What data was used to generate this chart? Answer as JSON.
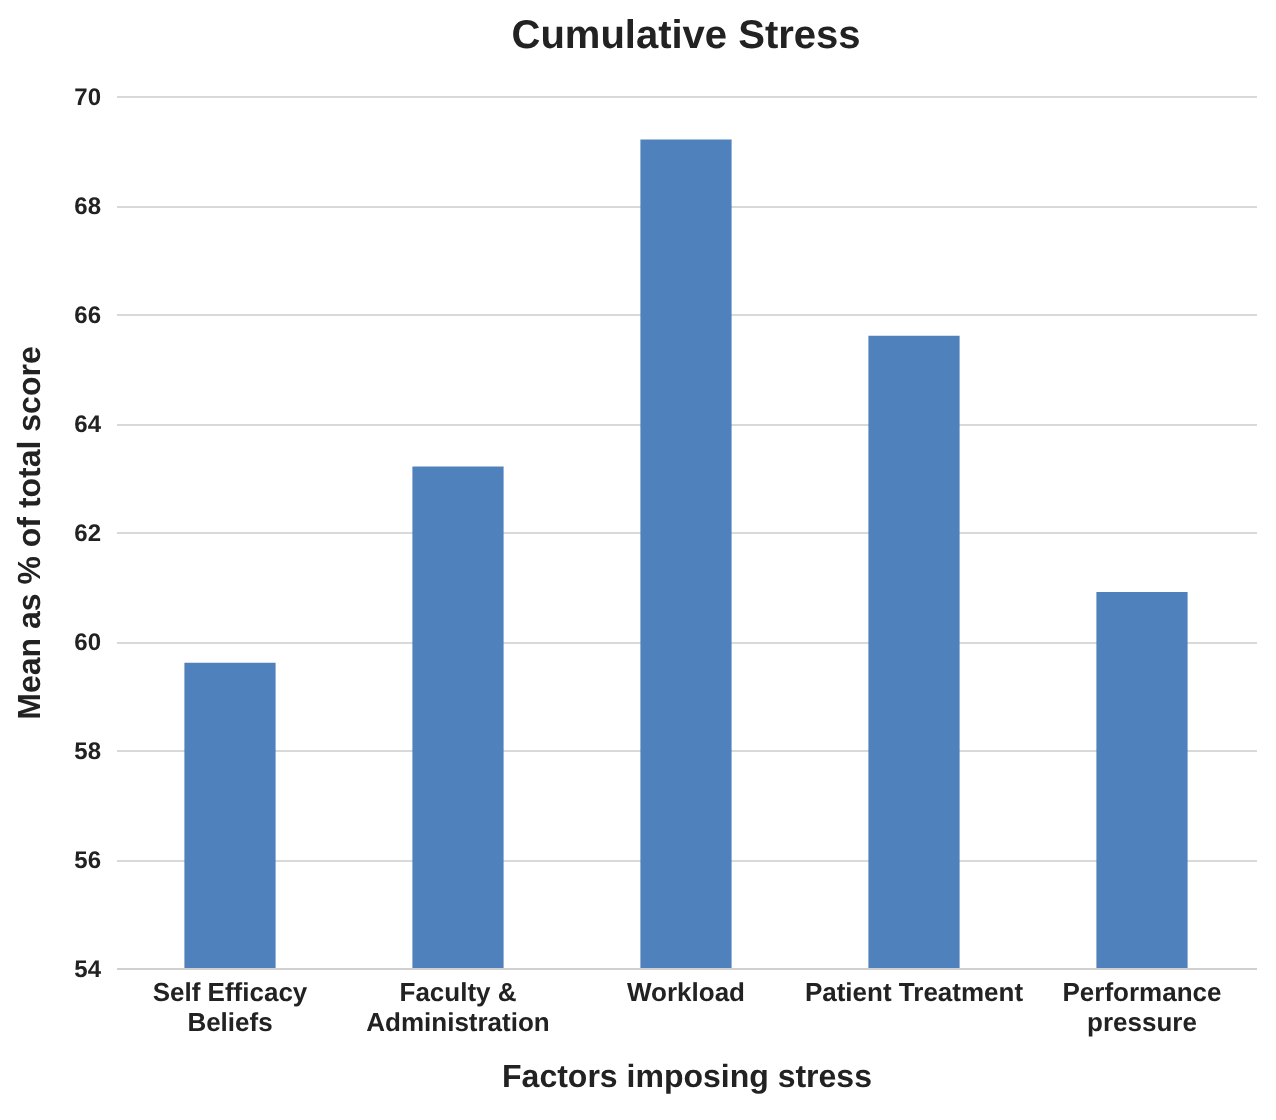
{
  "chart_data": {
    "type": "bar",
    "title": "Cumulative Stress",
    "xlabel": "Factors imposing stress",
    "ylabel": "Mean as % of total score",
    "categories": [
      "Self Efficacy Beliefs",
      "Faculty & Administration",
      "Workload",
      "Patient Treatment",
      "Performance pressure"
    ],
    "values": [
      59.6,
      63.2,
      69.2,
      65.6,
      60.9
    ],
    "color": "#4f81bd",
    "ylim": [
      54,
      70
    ],
    "yticks": [
      54,
      56,
      58,
      60,
      62,
      64,
      66,
      68,
      70
    ],
    "grid": "y"
  }
}
